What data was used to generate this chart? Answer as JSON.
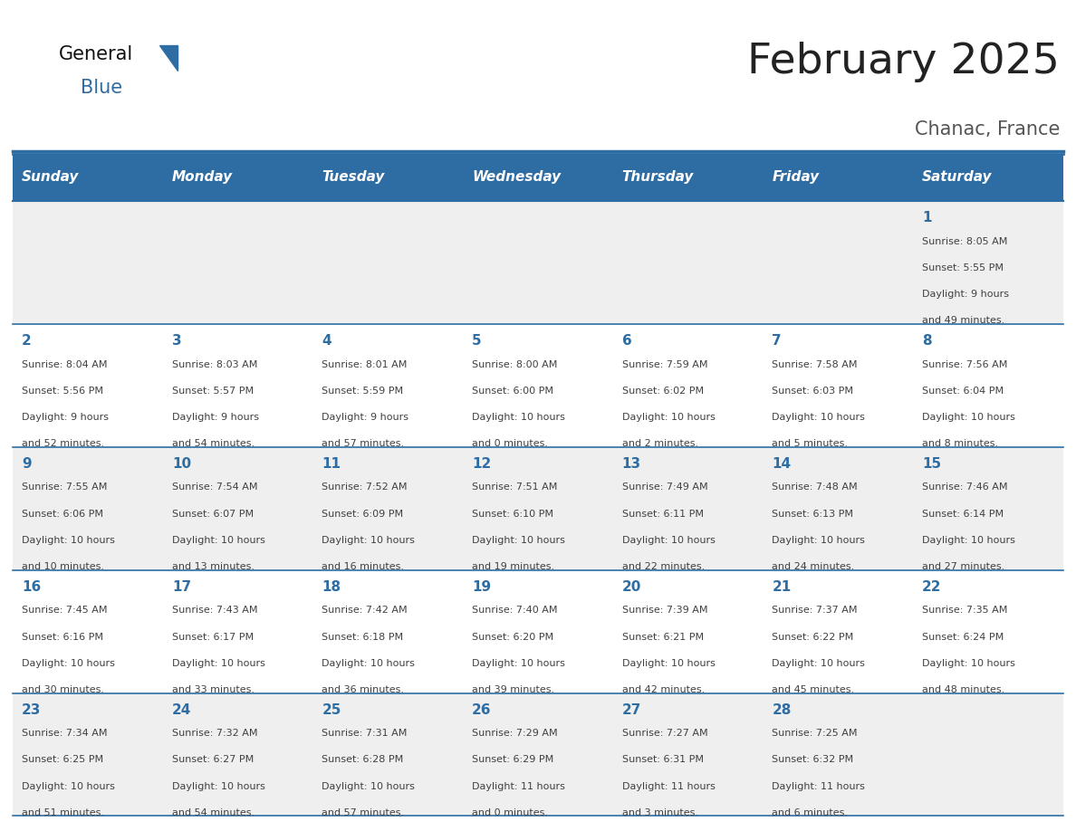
{
  "title": "February 2025",
  "subtitle": "Chanac, France",
  "days_of_week": [
    "Sunday",
    "Monday",
    "Tuesday",
    "Wednesday",
    "Thursday",
    "Friday",
    "Saturday"
  ],
  "header_bg": "#2E6DA4",
  "header_text_color": "#FFFFFF",
  "row_bg_gray": "#EFEFEF",
  "row_bg_white": "#FFFFFF",
  "cell_text_color": "#404040",
  "day_num_color": "#2E6DA4",
  "separator_color": "#2E6DA4",
  "title_color": "#222222",
  "subtitle_color": "#555555",
  "logo_general_color": "#111111",
  "logo_blue_color": "#2E6DA4",
  "calendar_data": [
    [
      null,
      null,
      null,
      null,
      null,
      null,
      {
        "day": 1,
        "sunrise": "8:05 AM",
        "sunset": "5:55 PM",
        "daylight": "9 hours and 49 minutes."
      }
    ],
    [
      {
        "day": 2,
        "sunrise": "8:04 AM",
        "sunset": "5:56 PM",
        "daylight": "9 hours and 52 minutes."
      },
      {
        "day": 3,
        "sunrise": "8:03 AM",
        "sunset": "5:57 PM",
        "daylight": "9 hours and 54 minutes."
      },
      {
        "day": 4,
        "sunrise": "8:01 AM",
        "sunset": "5:59 PM",
        "daylight": "9 hours and 57 minutes."
      },
      {
        "day": 5,
        "sunrise": "8:00 AM",
        "sunset": "6:00 PM",
        "daylight": "10 hours and 0 minutes."
      },
      {
        "day": 6,
        "sunrise": "7:59 AM",
        "sunset": "6:02 PM",
        "daylight": "10 hours and 2 minutes."
      },
      {
        "day": 7,
        "sunrise": "7:58 AM",
        "sunset": "6:03 PM",
        "daylight": "10 hours and 5 minutes."
      },
      {
        "day": 8,
        "sunrise": "7:56 AM",
        "sunset": "6:04 PM",
        "daylight": "10 hours and 8 minutes."
      }
    ],
    [
      {
        "day": 9,
        "sunrise": "7:55 AM",
        "sunset": "6:06 PM",
        "daylight": "10 hours and 10 minutes."
      },
      {
        "day": 10,
        "sunrise": "7:54 AM",
        "sunset": "6:07 PM",
        "daylight": "10 hours and 13 minutes."
      },
      {
        "day": 11,
        "sunrise": "7:52 AM",
        "sunset": "6:09 PM",
        "daylight": "10 hours and 16 minutes."
      },
      {
        "day": 12,
        "sunrise": "7:51 AM",
        "sunset": "6:10 PM",
        "daylight": "10 hours and 19 minutes."
      },
      {
        "day": 13,
        "sunrise": "7:49 AM",
        "sunset": "6:11 PM",
        "daylight": "10 hours and 22 minutes."
      },
      {
        "day": 14,
        "sunrise": "7:48 AM",
        "sunset": "6:13 PM",
        "daylight": "10 hours and 24 minutes."
      },
      {
        "day": 15,
        "sunrise": "7:46 AM",
        "sunset": "6:14 PM",
        "daylight": "10 hours and 27 minutes."
      }
    ],
    [
      {
        "day": 16,
        "sunrise": "7:45 AM",
        "sunset": "6:16 PM",
        "daylight": "10 hours and 30 minutes."
      },
      {
        "day": 17,
        "sunrise": "7:43 AM",
        "sunset": "6:17 PM",
        "daylight": "10 hours and 33 minutes."
      },
      {
        "day": 18,
        "sunrise": "7:42 AM",
        "sunset": "6:18 PM",
        "daylight": "10 hours and 36 minutes."
      },
      {
        "day": 19,
        "sunrise": "7:40 AM",
        "sunset": "6:20 PM",
        "daylight": "10 hours and 39 minutes."
      },
      {
        "day": 20,
        "sunrise": "7:39 AM",
        "sunset": "6:21 PM",
        "daylight": "10 hours and 42 minutes."
      },
      {
        "day": 21,
        "sunrise": "7:37 AM",
        "sunset": "6:22 PM",
        "daylight": "10 hours and 45 minutes."
      },
      {
        "day": 22,
        "sunrise": "7:35 AM",
        "sunset": "6:24 PM",
        "daylight": "10 hours and 48 minutes."
      }
    ],
    [
      {
        "day": 23,
        "sunrise": "7:34 AM",
        "sunset": "6:25 PM",
        "daylight": "10 hours and 51 minutes."
      },
      {
        "day": 24,
        "sunrise": "7:32 AM",
        "sunset": "6:27 PM",
        "daylight": "10 hours and 54 minutes."
      },
      {
        "day": 25,
        "sunrise": "7:31 AM",
        "sunset": "6:28 PM",
        "daylight": "10 hours and 57 minutes."
      },
      {
        "day": 26,
        "sunrise": "7:29 AM",
        "sunset": "6:29 PM",
        "daylight": "11 hours and 0 minutes."
      },
      {
        "day": 27,
        "sunrise": "7:27 AM",
        "sunset": "6:31 PM",
        "daylight": "11 hours and 3 minutes."
      },
      {
        "day": 28,
        "sunrise": "7:25 AM",
        "sunset": "6:32 PM",
        "daylight": "11 hours and 6 minutes."
      },
      null
    ]
  ]
}
